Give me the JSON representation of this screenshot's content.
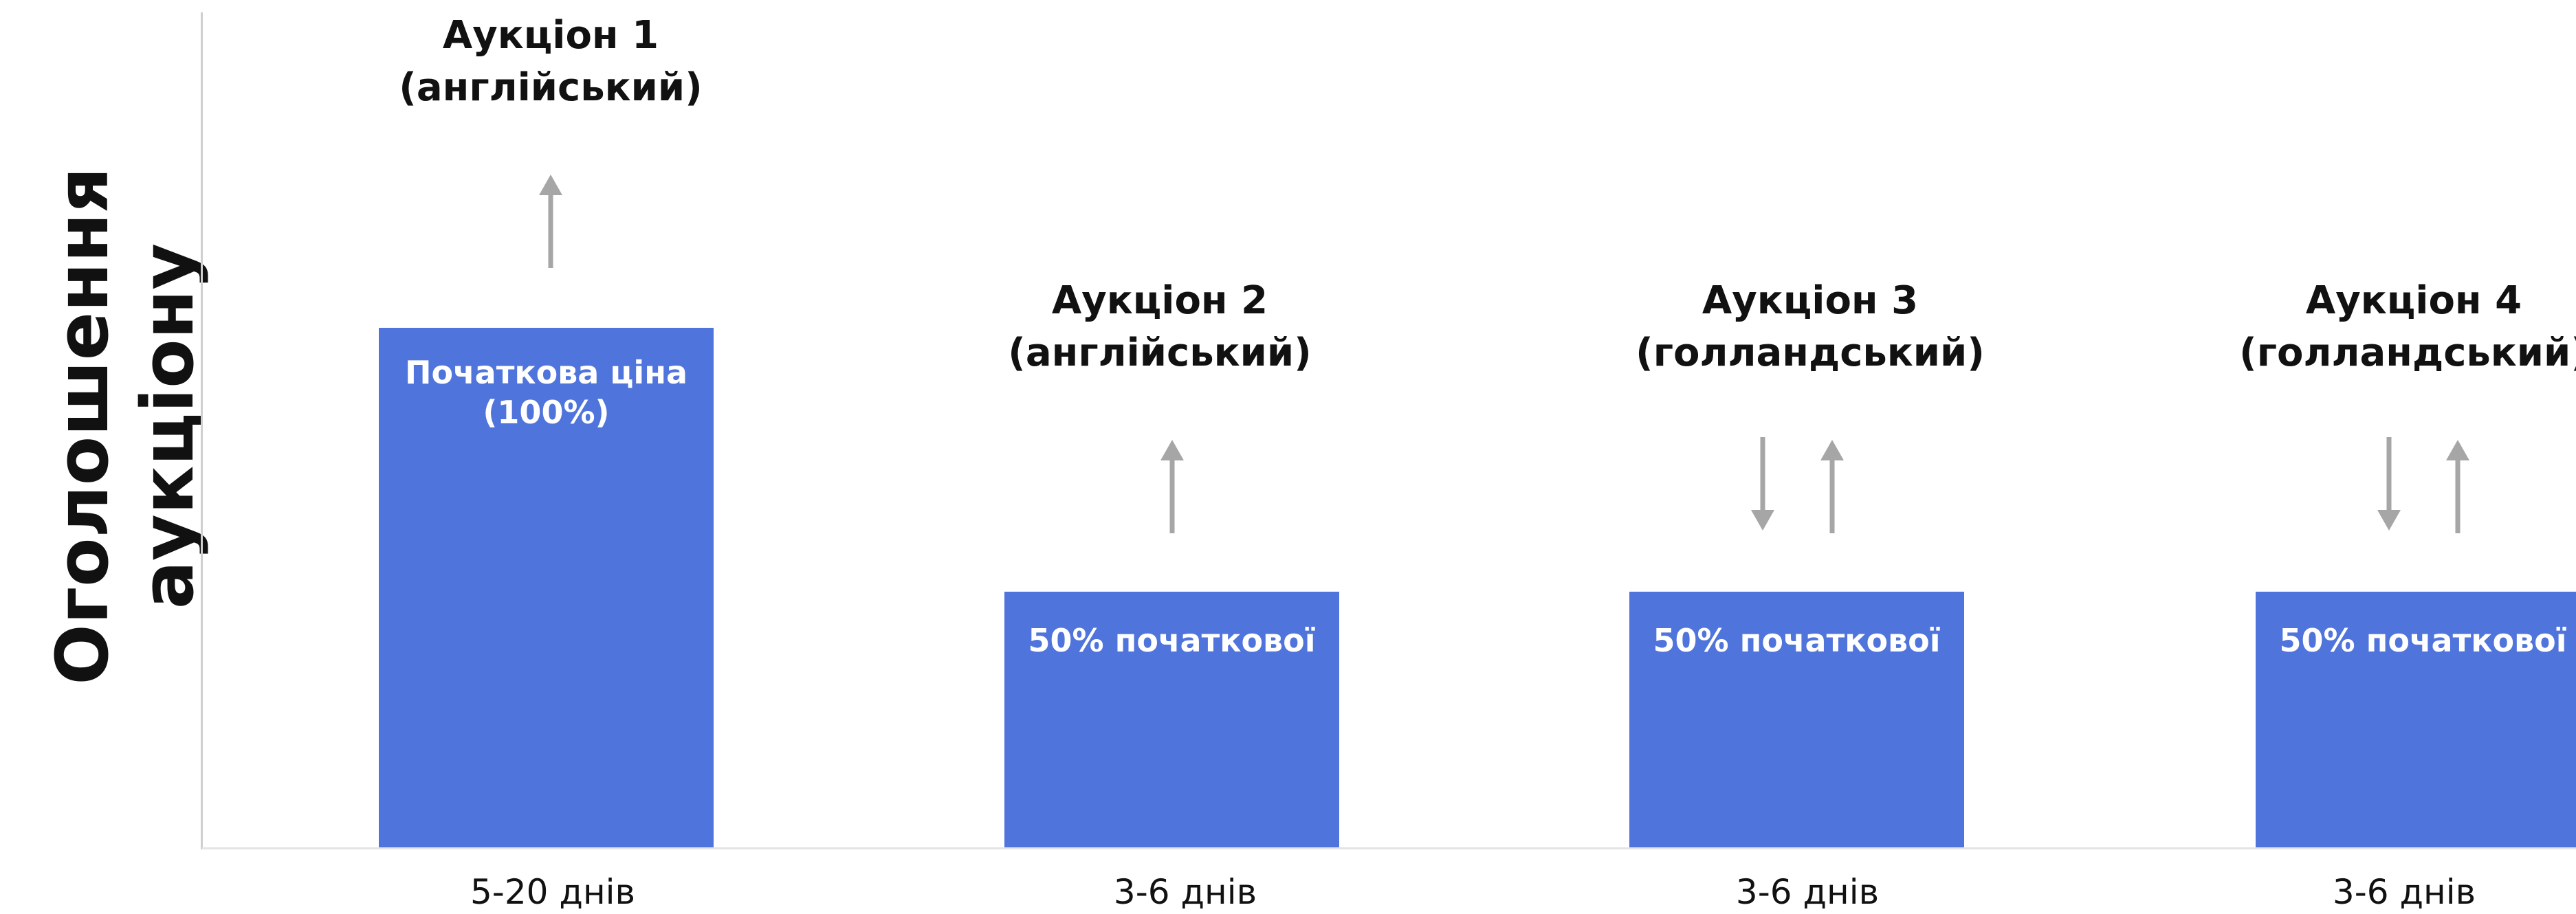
{
  "axis_title": {
    "line1": "Оголошення",
    "line2": "аукціону"
  },
  "auctions": [
    {
      "title_line1": "Аукціон 1",
      "title_line2": "(англійський)",
      "bar_line1": "Початкова ціна",
      "bar_line2": "(100%)",
      "duration": "5-20 днів",
      "arrows": [
        "up-arrow-icon"
      ],
      "price_percent": 100
    },
    {
      "title_line1": "Аукціон 2",
      "title_line2": "(англійський)",
      "bar_line1": "50% початкової",
      "duration": "3-6 днів",
      "arrows": [
        "up-arrow-icon"
      ],
      "price_percent": 50
    },
    {
      "title_line1": "Аукціон 3",
      "title_line2": "(голландський)",
      "bar_line1": "50% початкової",
      "duration": "3-6 днів",
      "arrows": [
        "down-arrow-icon",
        "up-arrow-icon"
      ],
      "price_percent": 50
    },
    {
      "title_line1": "Аукціон 4",
      "title_line2": "(голландський)",
      "bar_line1": "50% початкової",
      "duration": "3-6 днів",
      "arrows": [
        "down-arrow-icon",
        "up-arrow-icon"
      ],
      "price_percent": 50
    }
  ],
  "colors": {
    "bar": "#4f74dc",
    "arrow": "#a6a6a6",
    "axis": "#cfcfcf"
  }
}
